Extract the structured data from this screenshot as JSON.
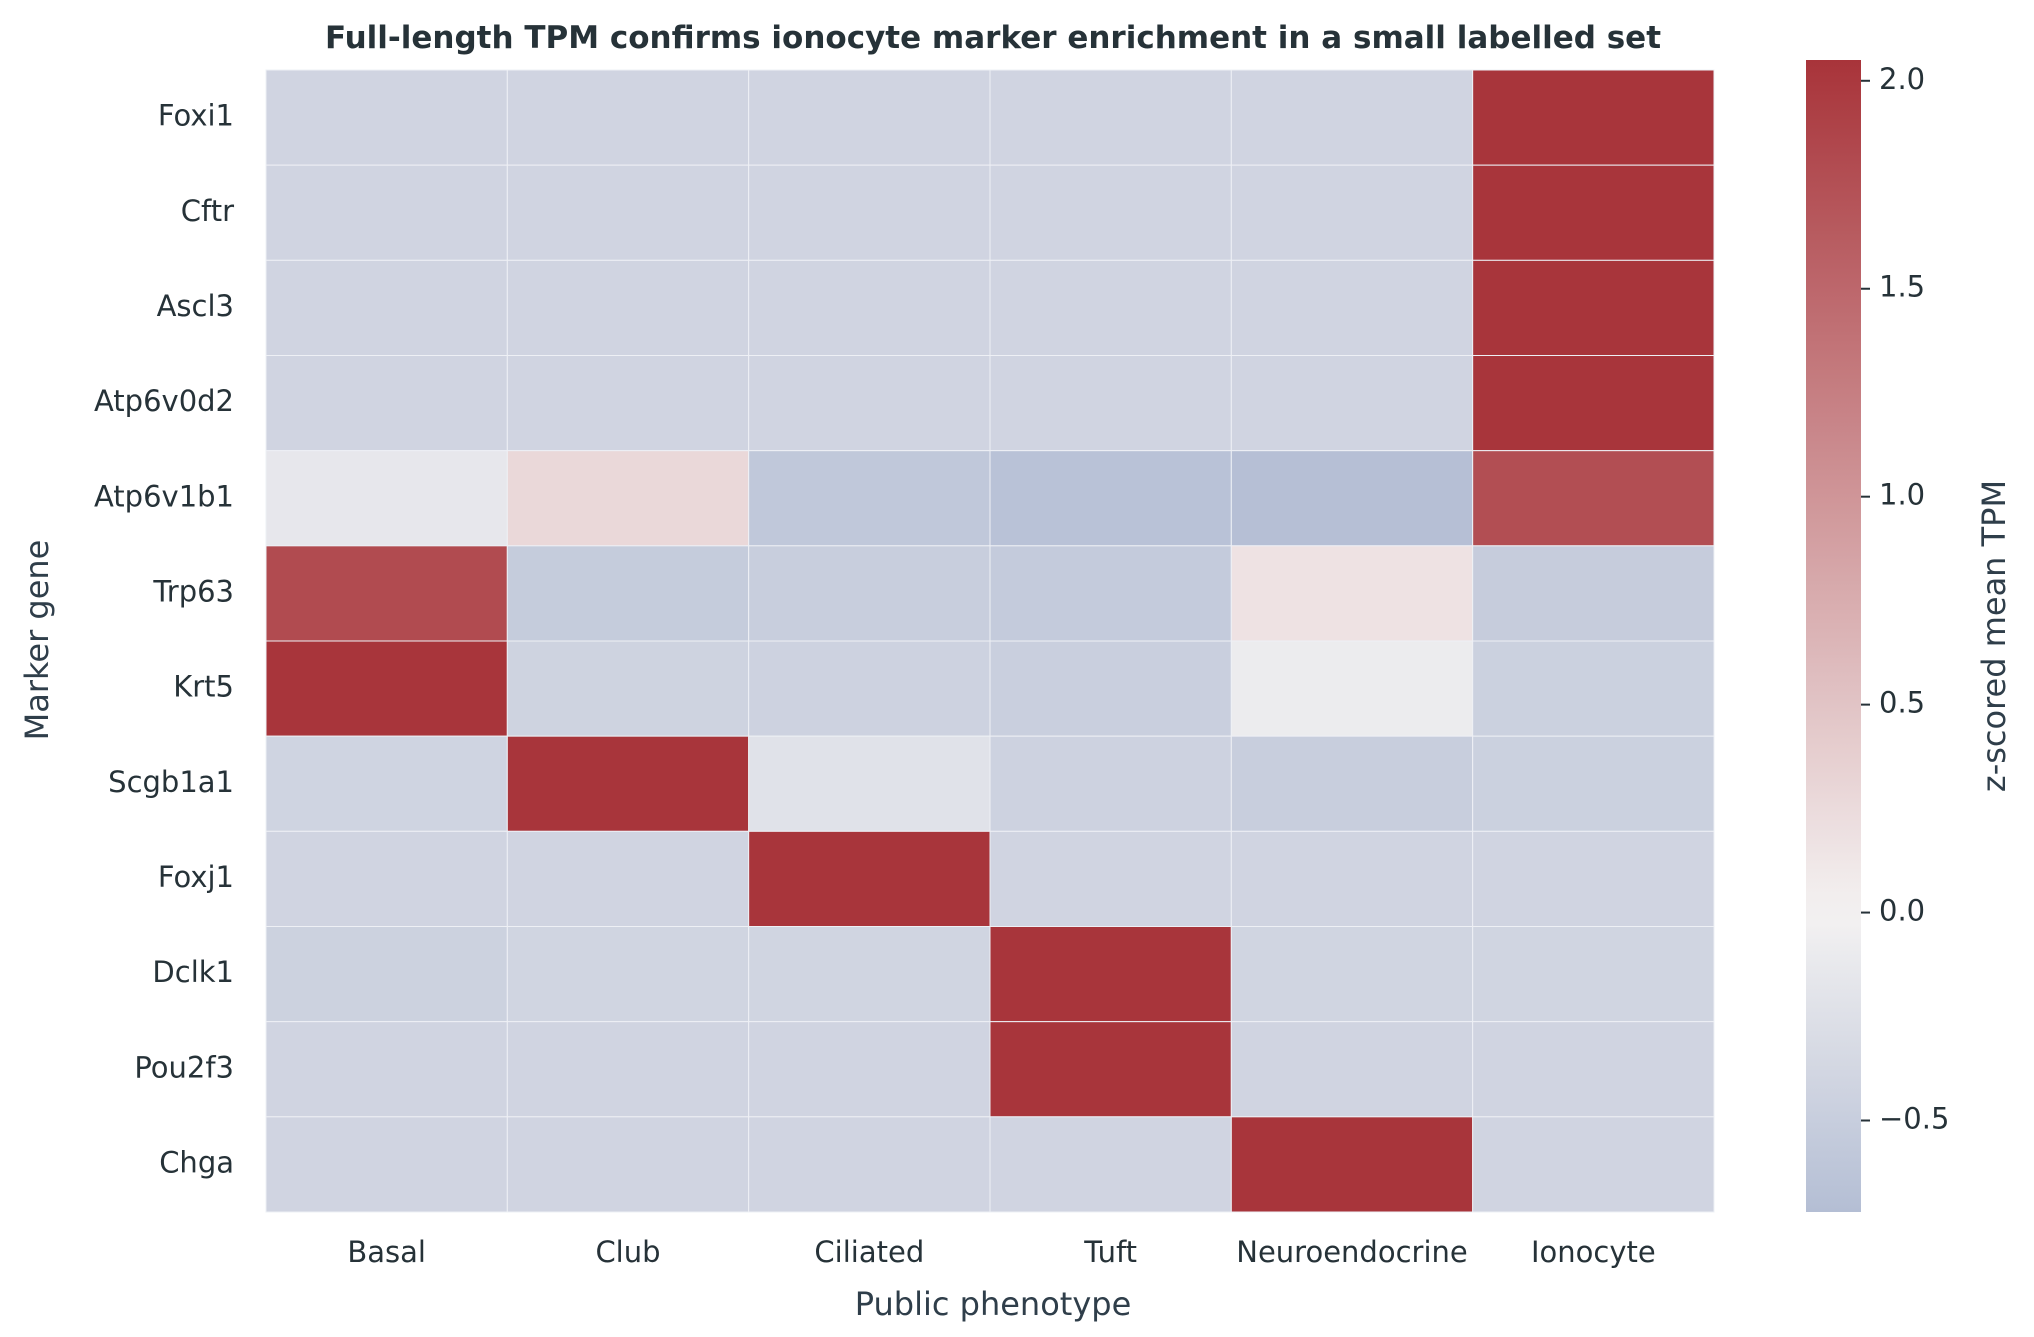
{
  "chart_data": {
    "type": "heatmap",
    "title": "Full-length TPM confirms ionocyte marker enrichment in a small labelled set",
    "xlabel": "Public phenotype",
    "ylabel": "Marker gene",
    "columns": [
      "Basal",
      "Club",
      "Ciliated",
      "Tuft",
      "Neuroendocrine",
      "Ionocyte"
    ],
    "rows": [
      "Foxi1",
      "Cftr",
      "Ascl3",
      "Atp6v0d2",
      "Atp6v1b1",
      "Trp63",
      "Krt5",
      "Scgb1a1",
      "Foxj1",
      "Dclk1",
      "Pou2f3",
      "Chga"
    ],
    "values": [
      [
        -0.41,
        -0.41,
        -0.41,
        -0.41,
        -0.41,
        2.04
      ],
      [
        -0.41,
        -0.41,
        -0.41,
        -0.41,
        -0.41,
        2.04
      ],
      [
        -0.41,
        -0.41,
        -0.41,
        -0.41,
        -0.41,
        2.04
      ],
      [
        -0.41,
        -0.41,
        -0.41,
        -0.41,
        -0.41,
        2.04
      ],
      [
        -0.15,
        0.28,
        -0.58,
        -0.66,
        -0.7,
        1.77
      ],
      [
        1.8,
        -0.53,
        -0.5,
        -0.54,
        0.17,
        -0.52
      ],
      [
        2.04,
        -0.43,
        -0.44,
        -0.48,
        -0.09,
        -0.46
      ],
      [
        -0.42,
        2.04,
        -0.22,
        -0.44,
        -0.5,
        -0.46
      ],
      [
        -0.41,
        -0.41,
        2.04,
        -0.41,
        -0.41,
        -0.41
      ],
      [
        -0.45,
        -0.4,
        -0.4,
        2.04,
        -0.4,
        -0.4
      ],
      [
        -0.41,
        -0.41,
        -0.41,
        2.04,
        -0.41,
        -0.41
      ],
      [
        -0.41,
        -0.41,
        -0.41,
        -0.41,
        2.04,
        -0.41
      ]
    ],
    "colorbar": {
      "label": "z-scored mean TPM",
      "range": [
        -0.72,
        2.05
      ],
      "ticks": [
        -0.5,
        0.0,
        0.5,
        1.0,
        1.5,
        2.0
      ],
      "tick_labels": [
        "−0.5",
        "0.0",
        "0.5",
        "1.0",
        "1.5",
        "2.0"
      ],
      "colors": {
        "negative": "#b4bed4",
        "center": "#f4f2f2",
        "positive": "#a8343a"
      }
    }
  }
}
